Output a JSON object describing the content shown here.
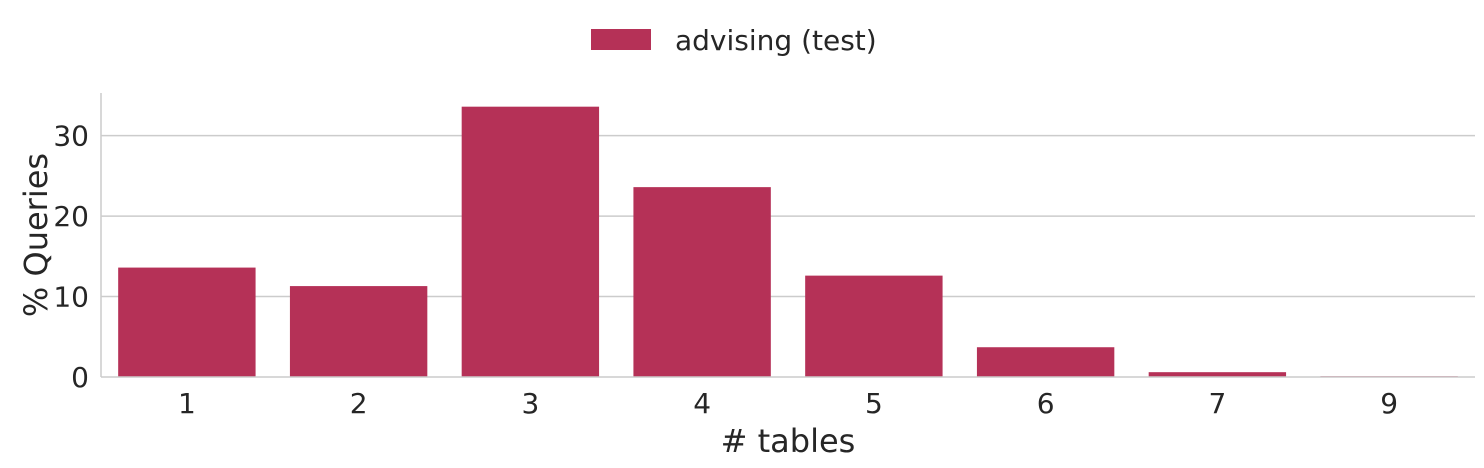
{
  "chart_data": {
    "type": "bar",
    "categories": [
      "1",
      "2",
      "3",
      "4",
      "5",
      "6",
      "7",
      "9"
    ],
    "series": [
      {
        "name": "advising (test)",
        "values": [
          13.6,
          11.3,
          33.6,
          23.6,
          12.6,
          3.7,
          0.6,
          0.1
        ],
        "color": "#b53157"
      }
    ],
    "xlabel": "# tables",
    "ylabel": "% Queries",
    "yticks": [
      0,
      10,
      20,
      30
    ],
    "ylim": [
      0,
      35.3
    ],
    "grid": "horizontal",
    "legend_position": "top-center"
  }
}
